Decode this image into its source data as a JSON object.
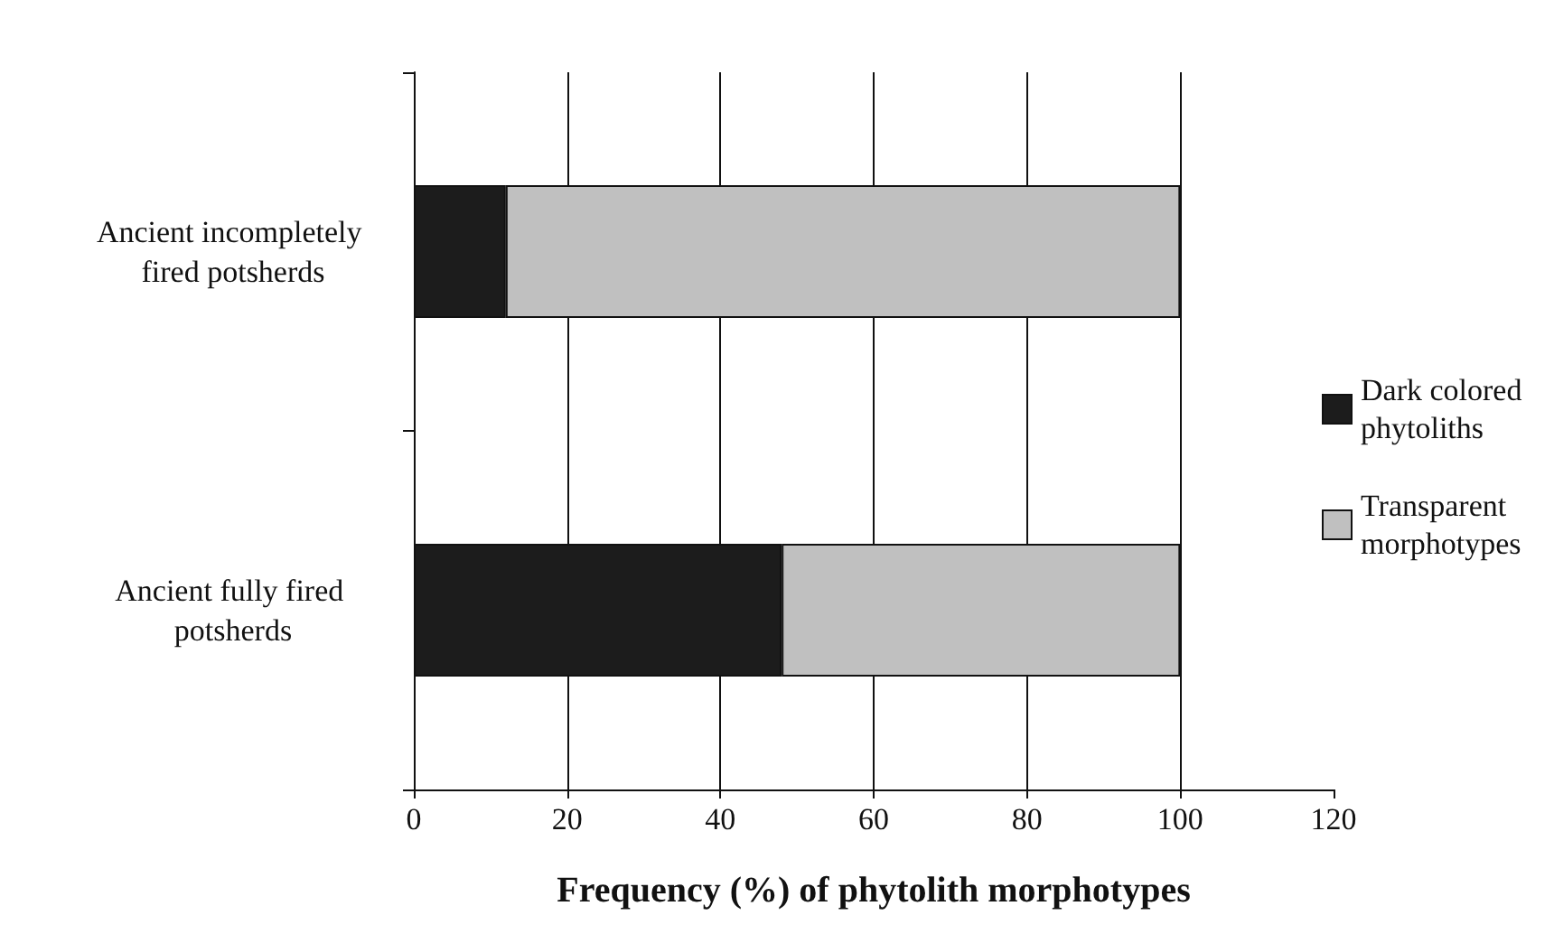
{
  "chart_data": {
    "type": "bar",
    "orientation": "horizontal",
    "stacked": true,
    "xlabel": "Frequency (%) of phytolith morphotypes",
    "categories": [
      "Ancient incompletely fired potsherds",
      "Ancient fully fired potsherds"
    ],
    "series": [
      {
        "name": "Dark colored phytoliths",
        "color": "#1c1c1c",
        "values": [
          12,
          48
        ]
      },
      {
        "name": "Transparent morphotypes",
        "color": "#c0c0c0",
        "values": [
          88,
          52
        ]
      }
    ],
    "xlim": [
      0,
      120
    ],
    "xticks": [
      0,
      20,
      40,
      60,
      80,
      100,
      120
    ],
    "grid": "x",
    "legend": "right"
  }
}
